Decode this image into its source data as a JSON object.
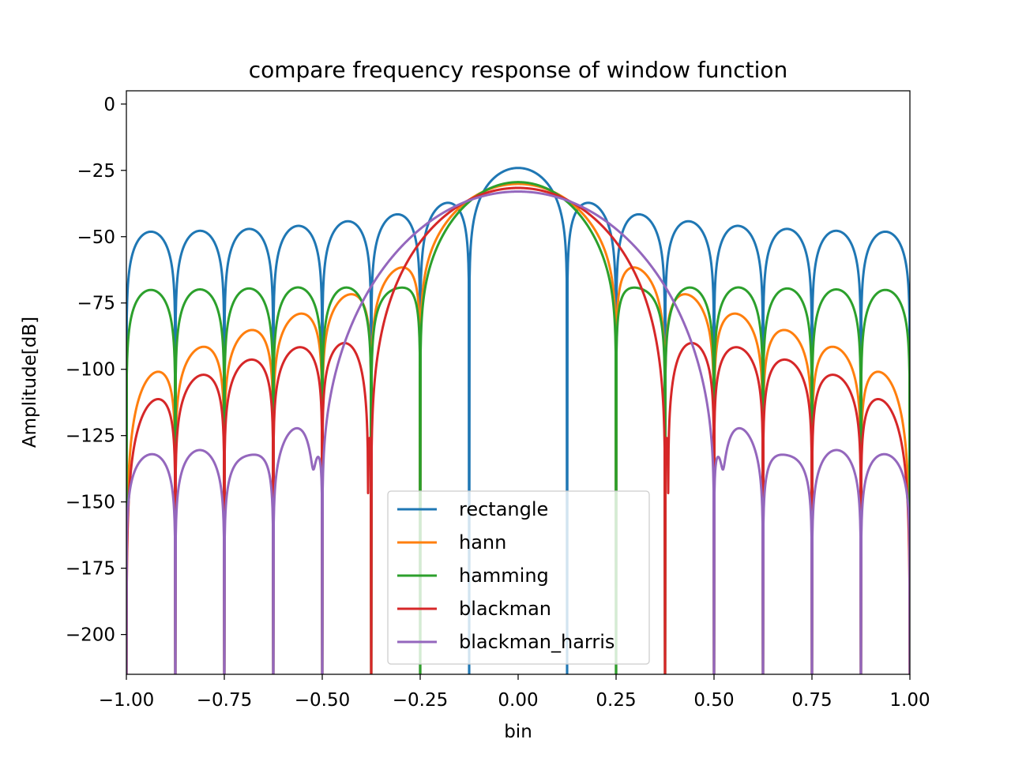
{
  "chart_data": {
    "type": "line",
    "title": "compare frequency response of window function",
    "xlabel": "bin",
    "ylabel": "Amplitude[dB]",
    "xlim": [
      -1.0,
      1.0
    ],
    "ylim": [
      -215,
      5
    ],
    "xticks": [
      "−1.00",
      "−0.75",
      "−0.50",
      "−0.25",
      "0.00",
      "0.25",
      "0.50",
      "0.75",
      "1.00"
    ],
    "xtick_values": [
      -1.0,
      -0.75,
      -0.5,
      -0.25,
      0.0,
      0.25,
      0.5,
      0.75,
      1.0
    ],
    "yticks": [
      "0",
      "−25",
      "−50",
      "−75",
      "−100",
      "−125",
      "−150",
      "−175",
      "−200"
    ],
    "ytick_values": [
      0,
      -25,
      -50,
      -75,
      -100,
      -125,
      -150,
      -175,
      -200
    ],
    "grid": false,
    "legend_position": "bottom-center",
    "series": [
      {
        "name": "rectangle",
        "color": "#1f77b4",
        "window": "rectangle"
      },
      {
        "name": "hann",
        "color": "#ff7f0e",
        "window": "hann"
      },
      {
        "name": "hamming",
        "color": "#2ca02c",
        "window": "hamming"
      },
      {
        "name": "blackman",
        "color": "#d62728",
        "window": "blackman"
      },
      {
        "name": "blackman_harris",
        "color": "#9467bd",
        "window": "blackman_harris"
      }
    ]
  }
}
